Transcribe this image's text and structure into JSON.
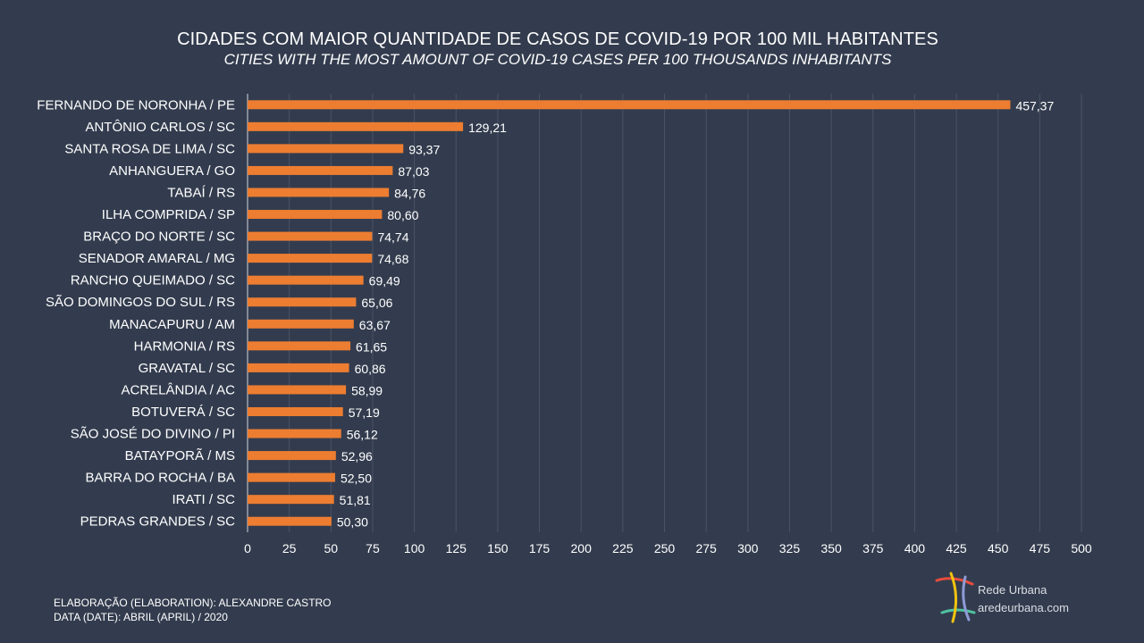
{
  "chart_data": {
    "type": "bar",
    "orientation": "horizontal",
    "title": "CIDADES COM MAIOR QUANTIDADE  DE CASOS DE COVID-19 POR 100 MIL HABITANTES",
    "subtitle": "CITIES WITH THE MOST AMOUNT OF COVID-19 CASES PER 100 THOUSANDS INHABITANTS",
    "categories": [
      "FERNANDO DE NORONHA / PE",
      "ANTÔNIO CARLOS / SC",
      "SANTA ROSA DE LIMA / SC",
      "ANHANGUERA / GO",
      "TABAÍ / RS",
      "ILHA COMPRIDA / SP",
      "BRAÇO DO NORTE / SC",
      "SENADOR AMARAL / MG",
      "RANCHO QUEIMADO / SC",
      "SÃO DOMINGOS DO SUL / RS",
      "MANACAPURU / AM",
      "HARMONIA / RS",
      "GRAVATAL / SC",
      "ACRELÂNDIA / AC",
      "BOTUVERÁ / SC",
      "SÃO JOSÉ DO DIVINO / PI",
      "BATAYPORÃ / MS",
      "BARRA DO ROCHA / BA",
      "IRATI / SC",
      "PEDRAS GRANDES / SC"
    ],
    "values": [
      457.37,
      129.21,
      93.37,
      87.03,
      84.76,
      80.6,
      74.74,
      74.68,
      69.49,
      65.06,
      63.67,
      61.65,
      60.86,
      58.99,
      57.19,
      56.12,
      52.96,
      52.5,
      51.81,
      50.3
    ],
    "value_labels": [
      "457,37",
      "129,21",
      "93,37",
      "87,03",
      "84,76",
      "80,60",
      "74,74",
      "74,68",
      "69,49",
      "65,06",
      "63,67",
      "61,65",
      "60,86",
      "58,99",
      "57,19",
      "56,12",
      "52,96",
      "52,50",
      "51,81",
      "50,30"
    ],
    "xlim": [
      0,
      500
    ],
    "xticks": [
      0,
      25,
      50,
      75,
      100,
      125,
      150,
      175,
      200,
      225,
      250,
      275,
      300,
      325,
      350,
      375,
      400,
      425,
      450,
      475,
      500
    ],
    "grid": true,
    "bar_color": "#ed7d31",
    "grid_color": "#4a5366"
  },
  "footer": {
    "elaboration": "ELABORAÇÃO (ELABORATION):  ALEXANDRE  CASTRO",
    "date": "DATA (DATE):  ABRIL (APRIL)  / 2020"
  },
  "logo": {
    "name": "Rede Urbana",
    "url": "aredeurbana.com"
  }
}
